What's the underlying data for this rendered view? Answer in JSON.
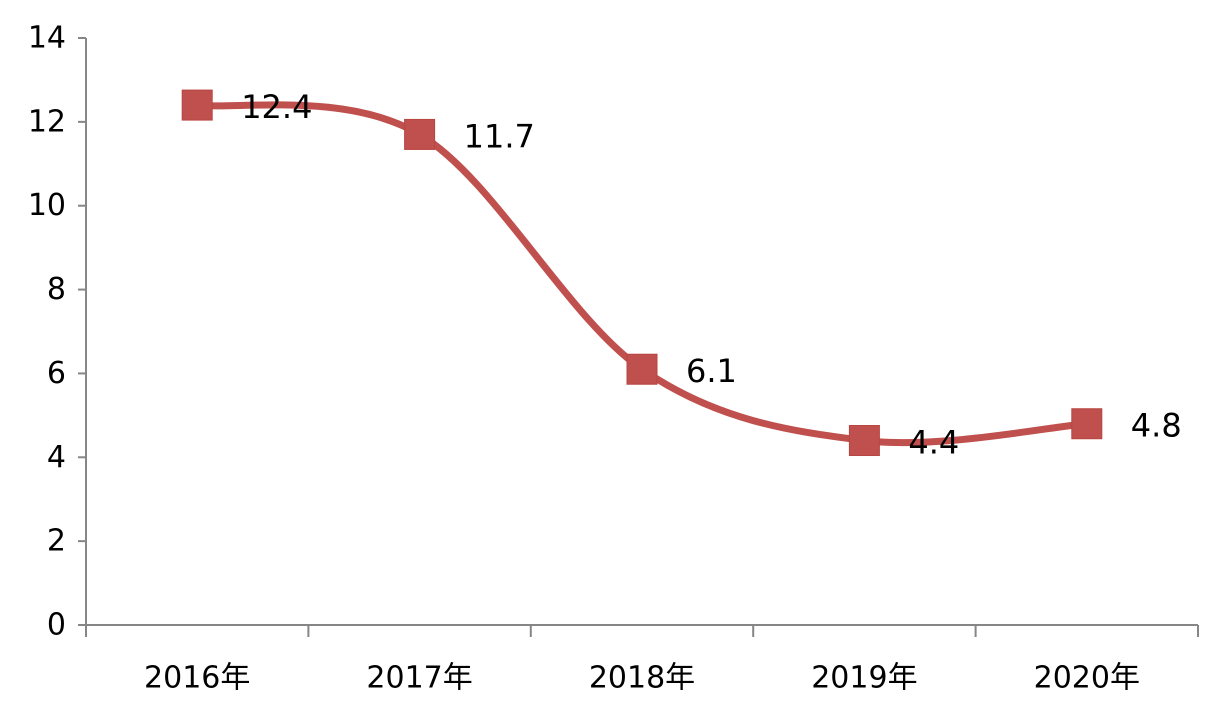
{
  "chart_data": {
    "type": "line",
    "title": "",
    "xlabel": "",
    "ylabel": "",
    "categories": [
      "2016年",
      "2017年",
      "2018年",
      "2019年",
      "2020年"
    ],
    "series": [
      {
        "values": [
          12.4,
          11.7,
          6.1,
          4.4,
          4.8
        ]
      }
    ],
    "data_labels": [
      "12.4",
      "11.7",
      "6.1",
      "4.4",
      "4.8"
    ],
    "ylim": [
      0,
      14
    ],
    "y_ticks": [
      "0",
      "2",
      "4",
      "6",
      "8",
      "10",
      "12",
      "14"
    ],
    "grid": false,
    "legend": "none",
    "smooth": true,
    "marker": "square",
    "line_color": "#c0504d",
    "axis_color": "#868686"
  }
}
